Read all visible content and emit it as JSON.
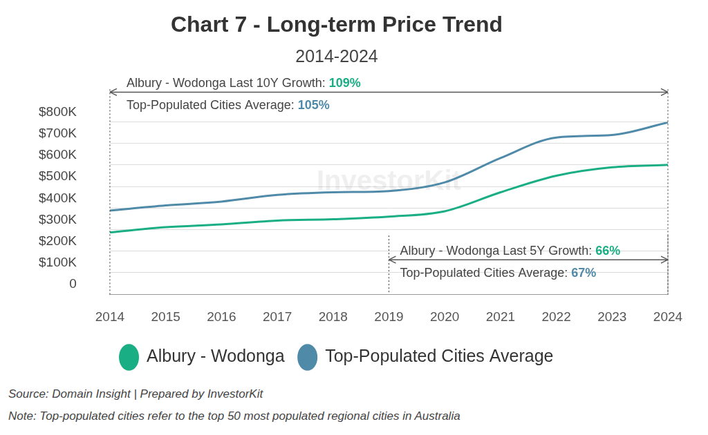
{
  "chart_data": {
    "type": "line",
    "title": "Chart 7 - Long-term Price Trend",
    "subtitle": "2014-2024",
    "categories": [
      "2014",
      "2015",
      "2016",
      "2017",
      "2018",
      "2019",
      "2020",
      "2021",
      "2022",
      "2023",
      "2024"
    ],
    "series": [
      {
        "name": "Albury - Wodonga",
        "color": "#1aae85",
        "values": [
          287000,
          311000,
          324000,
          342000,
          348000,
          360000,
          385000,
          473000,
          550000,
          589000,
          600000
        ]
      },
      {
        "name": "Top-Populated Cities Average",
        "color": "#4f8aa8",
        "values": [
          388000,
          412000,
          430000,
          461000,
          473000,
          479000,
          519000,
          632000,
          727000,
          739000,
          797000
        ]
      }
    ],
    "ylim": [
      0,
      800000
    ],
    "yticks": [
      0,
      {
        "value": 100000,
        "label": "$100K"
      },
      {
        "value": 200000,
        "label": "$200K"
      },
      {
        "value": 300000,
        "label": "$300K"
      },
      {
        "value": 400000,
        "label": "$400K"
      },
      {
        "value": 500000,
        "label": "$500K"
      },
      {
        "value": 600000,
        "label": "$600K"
      },
      {
        "value": 700000,
        "label": "$700K"
      },
      {
        "value": 800000,
        "label": "$800K"
      }
    ],
    "grid": true,
    "legend": "bottom",
    "annotations": [
      {
        "from": "2014",
        "to": "2024",
        "lines": [
          {
            "text": "Albury - Wodonga Last 10Y Growth:",
            "highlight": "109%",
            "series": "Albury - Wodonga"
          },
          {
            "text": "Top-Populated Cities Average:",
            "highlight": "105%",
            "series": "Top-Populated Cities Average"
          }
        ]
      },
      {
        "from": "2019",
        "to": "2024",
        "lines": [
          {
            "text": "Albury - Wodonga Last 5Y Growth:",
            "highlight": "66%",
            "series": "Albury - Wodonga"
          },
          {
            "text": "Top-Populated Cities Average:",
            "highlight": "67%",
            "series": "Top-Populated Cities Average"
          }
        ]
      }
    ],
    "watermark": "InvestorKit",
    "source": "Source: Domain Insight | Prepared by InvestorKit",
    "note": "Note: Top-populated cities refer to the top 50 most populated regional cities in Australia"
  }
}
